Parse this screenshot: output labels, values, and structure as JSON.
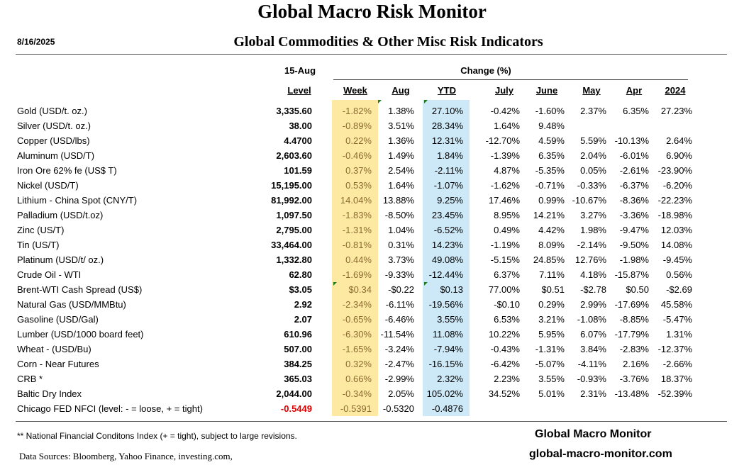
{
  "title": "Global Macro Risk Monitor",
  "date": "8/16/2025",
  "subtitle": "Global Commodities & Other Misc Risk Indicators",
  "header": {
    "level_date": "15-Aug",
    "change_label": "Change (%)",
    "level": "Level",
    "week": "Week",
    "aug": "Aug",
    "ytd": "YTD",
    "july": "July",
    "june": "June",
    "may": "May",
    "apr": "Apr",
    "y2024": "2024"
  },
  "rows": [
    {
      "name": "Gold (USD/t. oz.)",
      "level": "3,335.60",
      "week": "-1.82%",
      "aug": "1.38%",
      "ytd": "27.10%",
      "jul": "-0.42%",
      "jun": "-1.60%",
      "may": "2.37%",
      "apr": "6.35%",
      "y2024": "27.23%"
    },
    {
      "name": "Silver (USD/t. oz.)",
      "level": "38.00",
      "week": "-0.89%",
      "aug": "3.51%",
      "ytd": "28.34%",
      "jul": "1.64%",
      "jun": "9.48%",
      "may": "",
      "apr": "",
      "y2024": ""
    },
    {
      "name": "Copper (USD/lbs)",
      "level": "4.4700",
      "week": "0.22%",
      "aug": "1.36%",
      "ytd": "12.31%",
      "jul": "-12.70%",
      "jun": "4.59%",
      "may": "5.59%",
      "apr": "-10.13%",
      "y2024": "2.64%"
    },
    {
      "name": "Aluminum (USD/T)",
      "level": "2,603.60",
      "week": "-0.46%",
      "aug": "1.49%",
      "ytd": "1.84%",
      "jul": "-1.39%",
      "jun": "6.35%",
      "may": "2.04%",
      "apr": "-6.01%",
      "y2024": "6.90%"
    },
    {
      "name": "Iron Ore 62% fe (US$ T)",
      "level": "101.59",
      "week": "0.37%",
      "aug": "2.54%",
      "ytd": "-2.11%",
      "jul": "4.87%",
      "jun": "-5.35%",
      "may": "0.05%",
      "apr": "-2.61%",
      "y2024": "-23.90%"
    },
    {
      "name": "Nickel (USD/T)",
      "level": "15,195.00",
      "week": "0.53%",
      "aug": "1.64%",
      "ytd": "-1.07%",
      "jul": "-1.62%",
      "jun": "-0.71%",
      "may": "-0.33%",
      "apr": "-6.37%",
      "y2024": "-6.20%"
    },
    {
      "name": "Lithium - China Spot (CNY/T)",
      "level": "81,992.00",
      "week": "14.04%",
      "aug": "13.88%",
      "ytd": "9.25%",
      "jul": "17.46%",
      "jun": "0.99%",
      "may": "-10.67%",
      "apr": "-8.36%",
      "y2024": "-22.23%"
    },
    {
      "name": "Palladium (USD/t.oz)",
      "level": "1,097.50",
      "week": "-1.83%",
      "aug": "-8.50%",
      "ytd": "23.45%",
      "jul": "8.95%",
      "jun": "14.21%",
      "may": "3.27%",
      "apr": "-3.36%",
      "y2024": "-18.98%"
    },
    {
      "name": "Zinc (US/T)",
      "level": "2,795.00",
      "week": "-1.31%",
      "aug": "1.04%",
      "ytd": "-6.52%",
      "jul": "0.49%",
      "jun": "4.42%",
      "may": "1.98%",
      "apr": "-9.47%",
      "y2024": "12.03%"
    },
    {
      "name": "Tin (US/T)",
      "level": "33,464.00",
      "week": "-0.81%",
      "aug": "0.31%",
      "ytd": "14.23%",
      "jul": "-1.19%",
      "jun": "8.09%",
      "may": "-2.14%",
      "apr": "-9.50%",
      "y2024": "14.08%"
    },
    {
      "name": "Platinum (USD/t/ oz.)",
      "level": "1,332.80",
      "week": "0.44%",
      "aug": "3.73%",
      "ytd": "49.08%",
      "jul": "-5.15%",
      "jun": "24.85%",
      "may": "12.76%",
      "apr": "-1.98%",
      "y2024": "-9.45%"
    },
    {
      "name": "Crude Oil - WTI",
      "level": "62.80",
      "week": "-1.69%",
      "aug": "-9.33%",
      "ytd": "-12.44%",
      "jul": "6.37%",
      "jun": "7.11%",
      "may": "4.18%",
      "apr": "-15.87%",
      "y2024": "0.56%"
    },
    {
      "name": "Brent-WTI Cash Spread (US$)",
      "level": "$3.05",
      "week": "$0.34",
      "aug": "-$0.22",
      "ytd": "$0.13",
      "jul": "77.00%",
      "jun": "$0.51",
      "may": "-$2.78",
      "apr": "$0.50",
      "y2024": "-$2.69"
    },
    {
      "name": "Natural Gas  (USD/MMBtu)",
      "level": "2.92",
      "week": "-2.34%",
      "aug": "-6.11%",
      "ytd": "-19.56%",
      "jul": "-$0.10",
      "jun": "0.29%",
      "may": "2.99%",
      "apr": "-17.69%",
      "y2024": "45.58%"
    },
    {
      "name": "Gasoline (USD/Gal)",
      "level": "2.07",
      "week": "-0.65%",
      "aug": "-6.46%",
      "ytd": "3.55%",
      "jul": "6.53%",
      "jun": "3.21%",
      "may": "-1.08%",
      "apr": "-8.85%",
      "y2024": "-5.47%"
    },
    {
      "name": "Lumber (USD/1000 board feet)",
      "level": "610.96",
      "week": "-6.30%",
      "aug": "-11.54%",
      "ytd": "11.08%",
      "jul": "10.22%",
      "jun": "5.95%",
      "may": "6.07%",
      "apr": "-17.79%",
      "y2024": "1.31%"
    },
    {
      "name": "Wheat - (USD/Bu)",
      "level": "507.00",
      "week": "-1.65%",
      "aug": "-3.24%",
      "ytd": "-7.94%",
      "jul": "-0.43%",
      "jun": "-1.31%",
      "may": "3.84%",
      "apr": "-2.83%",
      "y2024": "-12.37%"
    },
    {
      "name": "Corn - Near Futures",
      "level": "384.25",
      "week": "0.32%",
      "aug": "-2.47%",
      "ytd": "-16.15%",
      "jul": "-6.42%",
      "jun": "-5.07%",
      "may": "-4.11%",
      "apr": "2.16%",
      "y2024": "-2.66%"
    },
    {
      "name": "CRB *",
      "level": "365.03",
      "week": "0.66%",
      "aug": "-2.99%",
      "ytd": "2.32%",
      "jul": "2.23%",
      "jun": "3.55%",
      "may": "-0.93%",
      "apr": "-3.76%",
      "y2024": "18.37%"
    },
    {
      "name": "Baltic Dry Index",
      "level": "2,044.00",
      "week": "-0.34%",
      "aug": "2.05%",
      "ytd": "105.02%",
      "jul": "34.52%",
      "jun": "5.01%",
      "may": "2.31%",
      "apr": "-13.48%",
      "y2024": "-52.39%"
    },
    {
      "name": "Chicago FED NFCI (level:  - = loose,  + = tight)",
      "level": "-0.5449",
      "week": "-0.5391",
      "aug": "-0.5320",
      "ytd": "-0.4876",
      "jul": "",
      "jun": "",
      "may": "",
      "apr": "",
      "y2024": ""
    }
  ],
  "colors": {
    "week_highlight": "#fde9a2",
    "ytd_highlight": "#cde8f6",
    "negative_level": "#e00000"
  },
  "footnote": "** National Financial Conditons Index (+ =  tight), subject to large revisions.",
  "sources": "Data Sources:  Bloomberg,  Yahoo Finance, investing.com,",
  "brand_name": "Global Macro Monitor",
  "brand_url": "global-macro-monitor.com"
}
